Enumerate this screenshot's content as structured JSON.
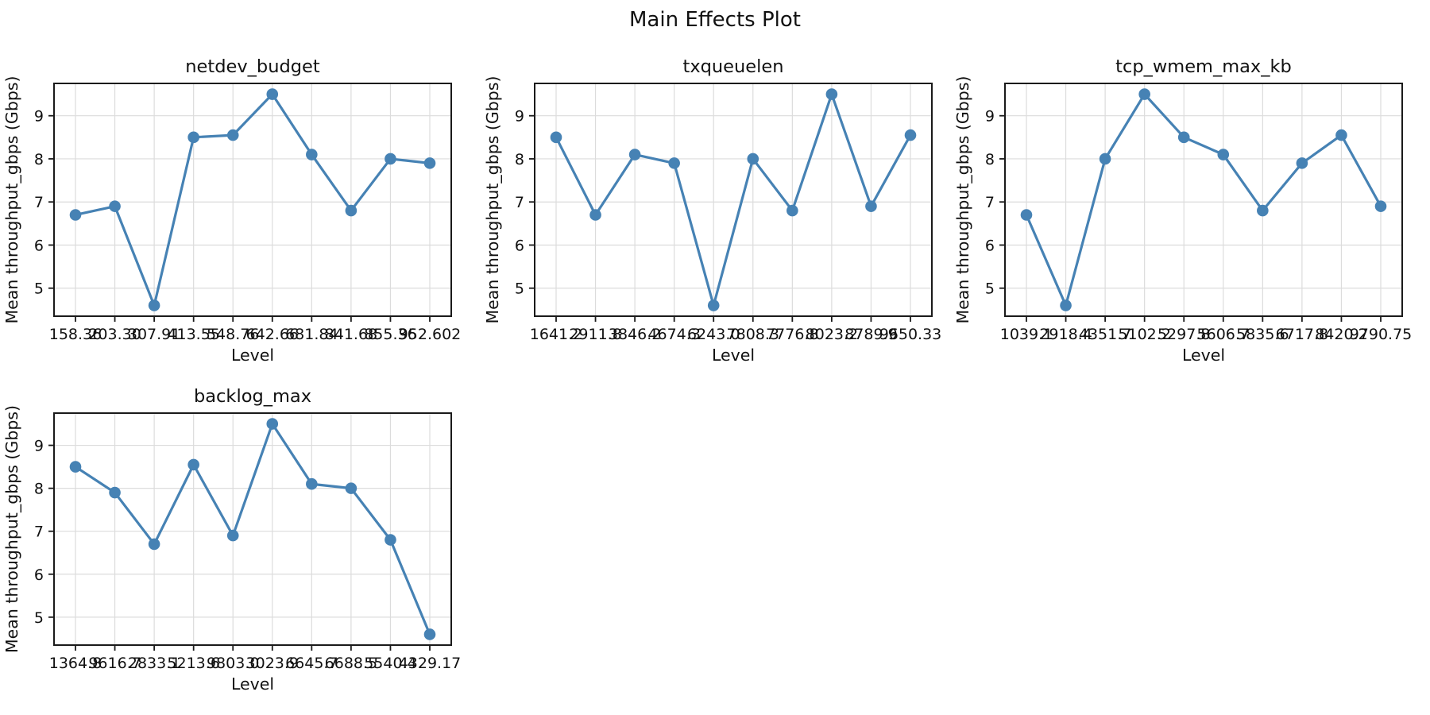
{
  "suptitle": "Main Effects Plot",
  "colors": {
    "line": "#4682B4",
    "marker": "#4682B4",
    "grid": "#DCDCDC",
    "spine": "#1A1A1A",
    "text": "#111111",
    "plot_background": "#FFFFFF"
  },
  "chart_data": [
    {
      "type": "line",
      "title": "netdev_budget",
      "xlabel": "Level",
      "ylabel": "Mean throughput_gbps (Gbps)",
      "categories": [
        "158.36",
        "203.30",
        "307.91",
        "413.55",
        "548.76",
        "642.66",
        "681.84",
        "841.68",
        "855.36",
        "952.602"
      ],
      "values": [
        6.7,
        6.9,
        4.6,
        8.5,
        8.55,
        9.5,
        8.1,
        6.8,
        8.0,
        7.9
      ],
      "ylim": [
        4.35,
        9.75
      ],
      "yticks": [
        5,
        6,
        7,
        8,
        9
      ],
      "grid": true,
      "legend": "none",
      "marker": "o"
    },
    {
      "type": "line",
      "title": "txqueuelen",
      "xlabel": "Level",
      "ylabel": "Mean throughput_gbps (Gbps)",
      "categories": [
        "1641.2",
        "2911.8",
        "3846.2",
        "4674.3",
        "6243.0",
        "7808.3",
        "7776.8",
        "8023.2",
        "8789.9",
        "9650.33"
      ],
      "values": [
        8.5,
        6.7,
        8.1,
        7.9,
        4.6,
        8.0,
        6.8,
        9.5,
        6.9,
        8.55
      ],
      "ylim": [
        4.35,
        9.75
      ],
      "yticks": [
        5,
        6,
        7,
        8,
        9
      ],
      "grid": true,
      "legend": "none",
      "marker": "o"
    },
    {
      "type": "line",
      "title": "tcp_wmem_max_kb",
      "xlabel": "Level",
      "ylabel": "Mean throughput_gbps (Gbps)",
      "categories": [
        "1039.1",
        "2918.4",
        "4351.7",
        "5102.2",
        "5297.8",
        "5606.7",
        "5835.6",
        "6717.8",
        "8420.2",
        "9790.75"
      ],
      "values": [
        6.7,
        4.6,
        8.0,
        9.5,
        8.5,
        8.1,
        6.8,
        7.9,
        8.55,
        6.9
      ],
      "ylim": [
        4.35,
        9.75
      ],
      "yticks": [
        5,
        6,
        7,
        8,
        9
      ],
      "grid": true,
      "legend": "none",
      "marker": "o"
    },
    {
      "type": "line",
      "title": "backlog_max",
      "xlabel": "Level",
      "ylabel": "Mean throughput_gbps (Gbps)",
      "categories": [
        "1364.8",
        "9616.7",
        "2833.1",
        "5213.6",
        "9803.0",
        "3023.9",
        "6645.7",
        "6688.5",
        "5540.4",
        "4329.17"
      ],
      "values": [
        8.5,
        7.9,
        6.7,
        8.55,
        6.9,
        9.5,
        8.1,
        8.0,
        6.8,
        4.6
      ],
      "ylim": [
        4.35,
        9.75
      ],
      "yticks": [
        5,
        6,
        7,
        8,
        9
      ],
      "grid": true,
      "legend": "none",
      "marker": "o"
    }
  ]
}
